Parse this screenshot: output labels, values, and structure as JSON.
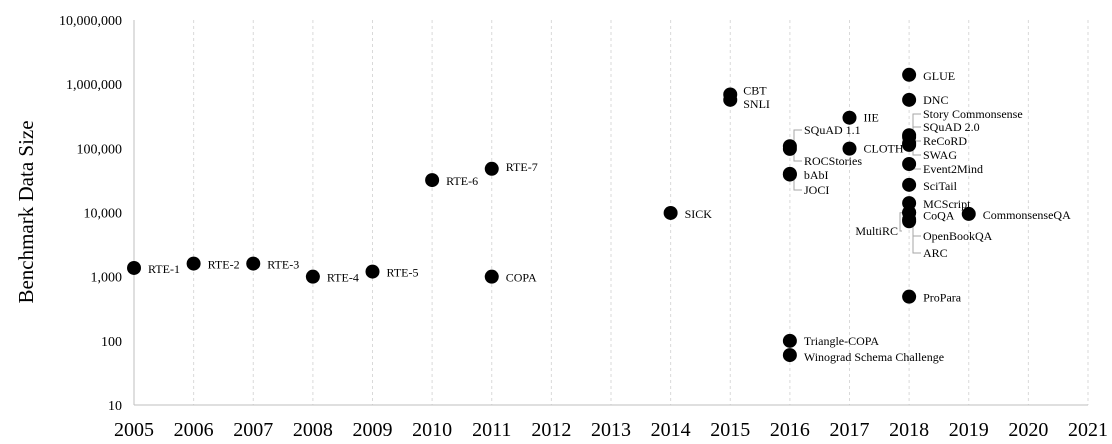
{
  "chart_data": {
    "type": "scatter",
    "title": "",
    "xlabel": "",
    "ylabel": "Benchmark Data Size",
    "xlim": [
      2005,
      2021
    ],
    "ylim": [
      10,
      10000000
    ],
    "yscale": "log",
    "grid": "vertical dashed",
    "x_ticks": [
      "2005",
      "2006",
      "2007",
      "2008",
      "2009",
      "2010",
      "2011",
      "2012",
      "2013",
      "2014",
      "2015",
      "2016",
      "2017",
      "2018",
      "2019",
      "2020",
      "2021"
    ],
    "y_ticks": [
      "10",
      "100",
      "1,000",
      "10,000",
      "100,000",
      "1,000,000",
      "10,000,000"
    ],
    "points": [
      {
        "label": "RTE-1",
        "x": 2005,
        "y": 1367
      },
      {
        "label": "RTE-2",
        "x": 2006,
        "y": 1600
      },
      {
        "label": "RTE-3",
        "x": 2007,
        "y": 1600
      },
      {
        "label": "RTE-4",
        "x": 2008,
        "y": 1000
      },
      {
        "label": "RTE-5",
        "x": 2009,
        "y": 1200
      },
      {
        "label": "RTE-6",
        "x": 2010,
        "y": 32000
      },
      {
        "label": "RTE-7",
        "x": 2011,
        "y": 48000
      },
      {
        "label": "COPA",
        "x": 2011,
        "y": 1000
      },
      {
        "label": "SICK",
        "x": 2014,
        "y": 9840
      },
      {
        "label": "CBT",
        "x": 2015,
        "y": 690000
      },
      {
        "label": "SNLI",
        "x": 2015,
        "y": 570000
      },
      {
        "label": "SQuAD 1.1",
        "x": 2016,
        "y": 108000
      },
      {
        "label": "ROCStories",
        "x": 2016,
        "y": 98000
      },
      {
        "label": "bAbI",
        "x": 2016,
        "y": 40000
      },
      {
        "label": "JOCI",
        "x": 2016,
        "y": 39000
      },
      {
        "label": "Triangle-COPA",
        "x": 2016,
        "y": 100
      },
      {
        "label": "Winograd Schema Challenge",
        "x": 2016,
        "y": 60
      },
      {
        "label": "IIE",
        "x": 2017,
        "y": 300000
      },
      {
        "label": "CLOTH",
        "x": 2017,
        "y": 99000
      },
      {
        "label": "GLUE",
        "x": 2018,
        "y": 1400000
      },
      {
        "label": "DNC",
        "x": 2018,
        "y": 570000
      },
      {
        "label": "Story Commonsense",
        "x": 2018,
        "y": 160000
      },
      {
        "label": "SQuAD 2.0",
        "x": 2018,
        "y": 150000
      },
      {
        "label": "ReCoRD",
        "x": 2018,
        "y": 120000
      },
      {
        "label": "SWAG",
        "x": 2018,
        "y": 113000
      },
      {
        "label": "Event2Mind",
        "x": 2018,
        "y": 57000
      },
      {
        "label": "SciTail",
        "x": 2018,
        "y": 27000
      },
      {
        "label": "MCScript",
        "x": 2018,
        "y": 14000
      },
      {
        "label": "CoQA",
        "x": 2018,
        "y": 10000
      },
      {
        "label": "MultiRC",
        "x": 2018,
        "y": 9900
      },
      {
        "label": "OpenBookQA",
        "x": 2018,
        "y": 7300
      },
      {
        "label": "ARC",
        "x": 2018,
        "y": 7800
      },
      {
        "label": "ProPara",
        "x": 2018,
        "y": 488
      },
      {
        "label": "CommonsenseQA",
        "x": 2019,
        "y": 9500
      }
    ]
  }
}
